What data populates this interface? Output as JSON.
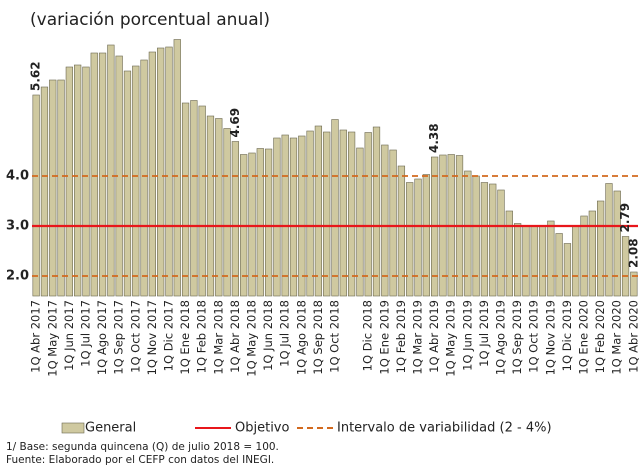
{
  "chart_data": {
    "type": "bar",
    "title": "(variación porcentual anual)",
    "categories": [
      "1Q Abr 2017",
      null,
      "1Q May 2017",
      null,
      "1Q Jun 2017",
      null,
      "1Q Jul 2017",
      null,
      "1Q Ago 2017",
      null,
      "1Q Sep 2017",
      null,
      "1Q Oct 2017",
      null,
      "1Q Nov 2017",
      null,
      "1Q Dic 2017",
      null,
      "1Q Ene 2018",
      null,
      "1Q Feb 2018",
      null,
      "1Q Mar 2018",
      null,
      "1Q Abr 2018",
      null,
      "1Q May 2018",
      null,
      "1Q Jun 2018",
      null,
      "1Q Jul 2018",
      null,
      "1Q Ago 2018",
      null,
      "1Q Sep 2018",
      null,
      "1Q Oct 2018",
      null,
      null,
      null,
      "1Q Dic 2018",
      null,
      "1Q Ene 2019",
      null,
      "1Q Feb 2019",
      null,
      "1Q Mar 2019",
      null,
      "1Q Abr 2019",
      null,
      "1Q May 2019",
      null,
      "1Q Jun 2019",
      null,
      "1Q Jul 2019",
      null,
      "1Q Ago 2019",
      null,
      "1Q Sep 2019",
      null,
      "1Q Oct 2019",
      null,
      "1Q Nov 2019",
      null,
      "1Q Dic 2019",
      null,
      "1Q Ene 2020",
      null,
      "1Q Feb 2020",
      null,
      "1Q Mar 2020",
      null,
      "1Q Abr 2020"
    ],
    "series": [
      {
        "name": "General",
        "color": "#cfc9a0",
        "values": [
          5.62,
          5.78,
          5.92,
          5.92,
          6.18,
          6.22,
          6.18,
          6.46,
          6.46,
          6.62,
          6.4,
          6.1,
          6.2,
          6.32,
          6.48,
          6.56,
          6.58,
          6.73,
          5.46,
          5.51,
          5.4,
          5.2,
          5.15,
          4.95,
          4.69,
          4.43,
          4.46,
          4.55,
          4.54,
          4.76,
          4.82,
          4.76,
          4.8,
          4.9,
          5.0,
          4.88,
          5.13,
          4.92,
          4.88,
          4.56,
          4.87,
          4.98,
          4.62,
          4.52,
          4.2,
          3.87,
          3.94,
          4.03,
          4.38,
          4.42,
          4.43,
          4.41,
          4.1,
          4.0,
          3.87,
          3.84,
          3.72,
          3.3,
          3.05,
          3.0,
          3.0,
          3.0,
          3.1,
          2.85,
          2.65,
          3.0,
          3.2,
          3.3,
          3.5,
          3.85,
          3.7,
          2.79,
          2.08
        ],
        "value_labels": [
          "5.62",
          null,
          null,
          null,
          null,
          null,
          null,
          null,
          null,
          null,
          null,
          null,
          null,
          null,
          null,
          null,
          null,
          null,
          null,
          null,
          null,
          null,
          null,
          null,
          "4.69",
          null,
          null,
          null,
          null,
          null,
          null,
          null,
          null,
          null,
          null,
          null,
          null,
          null,
          null,
          null,
          null,
          null,
          null,
          null,
          null,
          null,
          null,
          null,
          "4.38",
          null,
          null,
          null,
          null,
          null,
          null,
          null,
          null,
          null,
          null,
          null,
          null,
          null,
          null,
          null,
          null,
          null,
          null,
          null,
          null,
          null,
          null,
          "2.79",
          "2.08"
        ]
      }
    ],
    "value_label_color": "#9c9650",
    "ylim": [
      1.6,
      6.8
    ],
    "yticks": [
      {
        "value": 2,
        "label": "2.0"
      },
      {
        "value": 3,
        "label": "3.0"
      },
      {
        "value": 4,
        "label": "4.0"
      }
    ],
    "ytick_color": "#c0651e",
    "reference_lines": [
      {
        "name": "Objetivo",
        "values": [
          3
        ],
        "color": "#e8161b",
        "style": "solid"
      },
      {
        "name": "Intervalo de variabilidad (2 - 4%)",
        "values": [
          2,
          4
        ],
        "color": "#d2691e",
        "style": "dashed"
      }
    ],
    "notes": [
      "1/ Base: segunda quincena (Q) de julio 2018 = 100.",
      "Fuente: Elaborado por el CEFP con  datos del INEGI."
    ]
  }
}
